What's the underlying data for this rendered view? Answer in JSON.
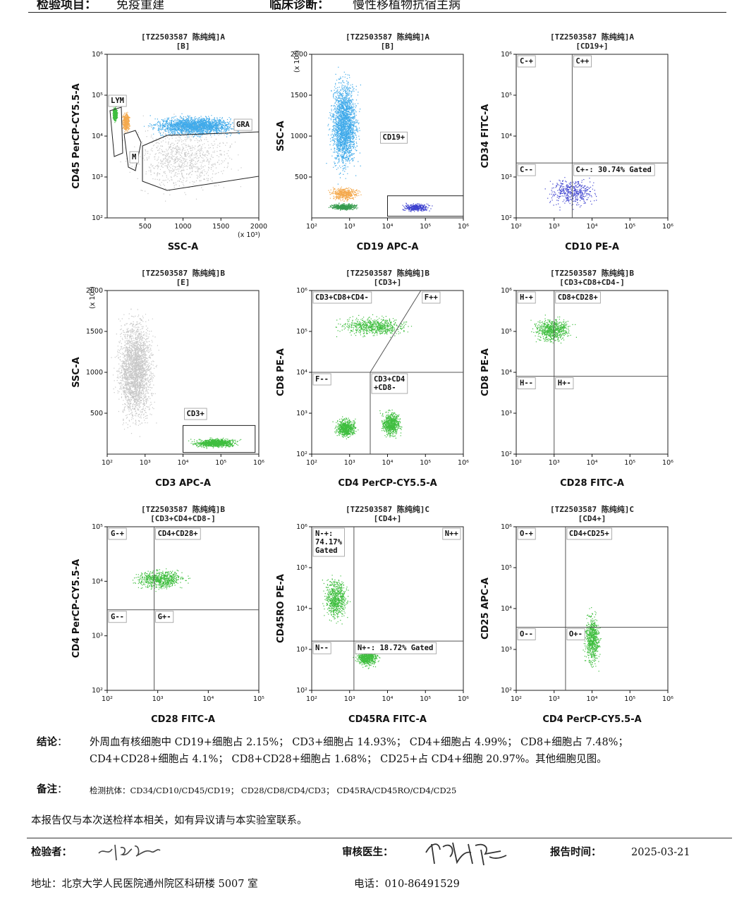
{
  "header": {
    "item_label": "检验项目：",
    "item_value": "免疫重建",
    "diag_label": "临床诊断：",
    "diag_value": "慢性移植物抗宿主病"
  },
  "colors": {
    "grey": "#bdbdbd",
    "blue": "#1e9be6",
    "orange": "#f29a2e",
    "green": "#1db31d",
    "darkgreen": "#138a2e",
    "navy": "#1a1fc7"
  },
  "chart_data": [
    {
      "type": "scatter",
      "id": "p1",
      "title": "[TZ2503587 陈纯纯]A",
      "subtitle": "[B]",
      "xlabel": "SSC-A",
      "ylabel": "CD45 PerCP-CY5.5-A",
      "xscale": "linear",
      "xlim": [
        0,
        2000
      ],
      "xticks": [
        "500",
        "1000",
        "1500",
        "2000"
      ],
      "xunit": "(x 10³)",
      "yscale": "log",
      "ylim": [
        100,
        1000000
      ],
      "yticks": [
        "10²",
        "10³",
        "10⁴",
        "10⁵",
        "10⁶"
      ],
      "gates": [
        "LYM",
        "M",
        "GRA"
      ],
      "populations": [
        {
          "name": "lymphocytes",
          "color": "green",
          "x": [
            60,
            140
          ],
          "y": [
            20000,
            60000
          ]
        },
        {
          "name": "monocytes",
          "color": "orange",
          "x": [
            170,
            320
          ],
          "y": [
            10000,
            50000
          ]
        },
        {
          "name": "granulocytes",
          "color": "blue",
          "x": [
            330,
            2000
          ],
          "y": [
            8000,
            40000
          ]
        },
        {
          "name": "debris",
          "color": "grey",
          "x": [
            0,
            2000
          ],
          "y": [
            150,
            60000
          ]
        }
      ]
    },
    {
      "type": "scatter",
      "id": "p2",
      "title": "[TZ2503587 陈纯纯]A",
      "subtitle": "[B]",
      "xlabel": "CD19 APC-A",
      "ylabel": "SSC-A",
      "xscale": "log",
      "xlim": [
        100,
        1000000
      ],
      "xticks": [
        "10²",
        "10³",
        "10⁴",
        "10⁵",
        "10⁶"
      ],
      "yscale": "linear",
      "ylim": [
        0,
        2000
      ],
      "yticks": [
        "500",
        "1000",
        "1500",
        "2000"
      ],
      "yunit": "(x 10³)",
      "gates": [
        "CD19+"
      ],
      "populations": [
        {
          "name": "granulocytes",
          "color": "blue",
          "x": [
            200,
            2500
          ],
          "y": [
            300,
            2000
          ]
        },
        {
          "name": "monocytes",
          "color": "orange",
          "x": [
            200,
            2500
          ],
          "y": [
            180,
            420
          ]
        },
        {
          "name": "lymphocytes",
          "color": "darkgreen",
          "x": [
            200,
            2500
          ],
          "y": [
            80,
            200
          ]
        },
        {
          "name": "CD19+",
          "color": "navy",
          "x": [
            15000,
            200000
          ],
          "y": [
            60,
            200
          ]
        }
      ]
    },
    {
      "type": "scatter",
      "id": "p3",
      "title": "[TZ2503587 陈纯纯]A",
      "subtitle": "[CD19+]",
      "xlabel": "CD10 PE-A",
      "ylabel": "CD34 FITC-A",
      "xscale": "log",
      "xlim": [
        100,
        1000000
      ],
      "xticks": [
        "10²",
        "10³",
        "10⁴",
        "10⁵",
        "10⁶"
      ],
      "yscale": "log",
      "ylim": [
        100,
        1000000
      ],
      "yticks": [
        "10²",
        "10³",
        "10⁴",
        "10⁵",
        "10⁶"
      ],
      "quadrants": [
        "C-+",
        "C++",
        "C--",
        "C+-: 30.74% Gated"
      ],
      "populations": [
        {
          "name": "CD19+",
          "color": "navy",
          "x": [
            300,
            30000
          ],
          "y": [
            130,
            1500
          ]
        }
      ]
    },
    {
      "type": "scatter",
      "id": "p4",
      "title": "[TZ2503587 陈纯纯]B",
      "subtitle": "[E]",
      "xlabel": "CD3 APC-A",
      "ylabel": "SSC-A",
      "xscale": "log",
      "xlim": [
        100,
        1000000
      ],
      "xticks": [
        "10²",
        "10³",
        "10⁴",
        "10⁵",
        "10⁶"
      ],
      "yscale": "linear",
      "ylim": [
        0,
        2000
      ],
      "yticks": [
        "500",
        "1000",
        "1500",
        "2000"
      ],
      "yunit": "(x 10³)",
      "gates": [
        "CD3+"
      ],
      "populations": [
        {
          "name": "other",
          "color": "grey",
          "x": [
            100,
            3000
          ],
          "y": [
            50,
            2000
          ]
        },
        {
          "name": "CD3+",
          "color": "green",
          "x": [
            10000,
            500000
          ],
          "y": [
            60,
            220
          ]
        }
      ]
    },
    {
      "type": "scatter",
      "id": "p5",
      "title": "[TZ2503587 陈纯纯]B",
      "subtitle": "[CD3+]",
      "xlabel": "CD4 PerCP-CY5.5-A",
      "ylabel": "CD8 PE-A",
      "xscale": "log",
      "xlim": [
        100,
        1000000
      ],
      "xticks": [
        "10²",
        "10³",
        "10⁴",
        "10⁵",
        "10⁶"
      ],
      "yscale": "log",
      "ylim": [
        100,
        1000000
      ],
      "yticks": [
        "10²",
        "10³",
        "10⁴",
        "10⁵",
        "10⁶"
      ],
      "quadrants": [
        "CD3+CD8+CD4-",
        "F++",
        "F--",
        "CD3+CD4 +CD8-"
      ],
      "populations": [
        {
          "name": "CD8+",
          "color": "green",
          "x": [
            200,
            100000
          ],
          "y": [
            60000,
            300000
          ]
        },
        {
          "name": "DN",
          "color": "green",
          "x": [
            300,
            2000
          ],
          "y": [
            200,
            1000
          ]
        },
        {
          "name": "CD4+",
          "color": "green",
          "x": [
            5000,
            30000
          ],
          "y": [
            200,
            1500
          ]
        }
      ]
    },
    {
      "type": "scatter",
      "id": "p6",
      "title": "[TZ2503587 陈纯纯]B",
      "subtitle": "[CD3+CD8+CD4-]",
      "xlabel": "CD28 FITC-A",
      "ylabel": "CD8 PE-A",
      "xscale": "log",
      "xlim": [
        100,
        1000000
      ],
      "xticks": [
        "10²",
        "10³",
        "10⁴",
        "10⁵",
        "10⁶"
      ],
      "yscale": "log",
      "ylim": [
        100,
        1000000
      ],
      "yticks": [
        "10²",
        "10³",
        "10⁴",
        "10⁵",
        "10⁶"
      ],
      "quadrants": [
        "H-+",
        "CD8+CD28+",
        "H--",
        "H+-"
      ],
      "populations": [
        {
          "name": "CD8+",
          "color": "green",
          "x": [
            150,
            5000
          ],
          "y": [
            40000,
            300000
          ]
        }
      ]
    },
    {
      "type": "scatter",
      "id": "p7",
      "title": "[TZ2503587 陈纯纯]B",
      "subtitle": "[CD3+CD4+CD8-]",
      "xlabel": "CD28 FITC-A",
      "ylabel": "CD4 PerCP-CY5.5-A",
      "xscale": "log",
      "xlim": [
        100,
        100000
      ],
      "xticks": [
        "10²",
        "10³",
        "10⁴",
        "10⁵"
      ],
      "yscale": "log",
      "ylim": [
        100,
        100000
      ],
      "yticks": [
        "10²",
        "10³",
        "10⁴",
        "10⁵"
      ],
      "quadrants": [
        "G-+",
        "CD4+CD28+",
        "G--",
        "G+-"
      ],
      "populations": [
        {
          "name": "CD4+",
          "color": "green",
          "x": [
            200,
            6000
          ],
          "y": [
            6000,
            20000
          ]
        }
      ]
    },
    {
      "type": "scatter",
      "id": "p8",
      "title": "[TZ2503587 陈纯纯]C",
      "subtitle": "[CD4+]",
      "xlabel": "CD45RA FITC-A",
      "ylabel": "CD45RO PE-A",
      "xscale": "log",
      "xlim": [
        100,
        1000000
      ],
      "xticks": [
        "10²",
        "10³",
        "10⁴",
        "10⁵",
        "10⁶"
      ],
      "yscale": "log",
      "ylim": [
        100,
        1000000
      ],
      "yticks": [
        "10²",
        "10³",
        "10⁴",
        "10⁵",
        "10⁶"
      ],
      "quadrants": [
        "N-+: 74.17% Gated",
        "N++",
        "N--",
        "N+-: 18.72% Gated"
      ],
      "populations": [
        {
          "name": "memory",
          "color": "green",
          "x": [
            150,
            1200
          ],
          "y": [
            3000,
            100000
          ]
        },
        {
          "name": "naive",
          "color": "green",
          "x": [
            1000,
            8000
          ],
          "y": [
            300,
            1500
          ]
        }
      ]
    },
    {
      "type": "scatter",
      "id": "p9",
      "title": "[TZ2503587 陈纯纯]C",
      "subtitle": "[CD4+]",
      "xlabel": "CD4 PerCP-CY5.5-A",
      "ylabel": "CD25 APC-A",
      "xscale": "log",
      "xlim": [
        100,
        1000000
      ],
      "xticks": [
        "10²",
        "10³",
        "10⁴",
        "10⁵",
        "10⁶"
      ],
      "yscale": "log",
      "ylim": [
        100,
        1000000
      ],
      "yticks": [
        "10²",
        "10³",
        "10⁴",
        "10⁵",
        "10⁶"
      ],
      "quadrants": [
        "O-+",
        "CD4+CD25+",
        "O--",
        "O+-"
      ],
      "populations": [
        {
          "name": "CD4+",
          "color": "green",
          "x": [
            5000,
            20000
          ],
          "y": [
            200,
            15000
          ]
        }
      ]
    }
  ],
  "conclusion": {
    "label": "结论",
    "line1": "外周血有核细胞中 CD19+细胞占 2.15%；  CD3+细胞占 14.93%；  CD4+细胞占 4.99%；  CD8+细胞占 7.48%；",
    "line2": "CD4+CD28+细胞占 4.1%；   CD8+CD28+细胞占 1.68%；   CD25+占 CD4+细胞 20.97%。其他细胞见图。"
  },
  "note": {
    "label": "备注",
    "text": "检测抗体：CD34/CD10/CD45/CD19；  CD28/CD8/CD4/CD3；  CD45RA/CD45RO/CD4/CD25"
  },
  "disclaimer": "本报告仅与本次送检样本相关，如有异议请与本实验室联系。",
  "footer": {
    "tester_label": "检验者：",
    "reviewer_label": "审核医生：",
    "time_label": "报告时间：",
    "time_value": "2025-03-21",
    "address": "地址：北京大学人民医院通州院区科研楼 5007 室",
    "phone": "电话：010-86491529"
  }
}
